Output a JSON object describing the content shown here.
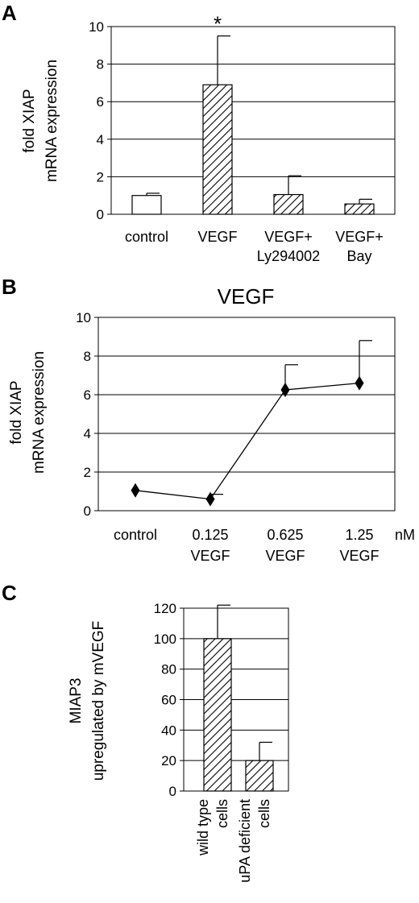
{
  "chart_data": [
    {
      "panel": "A",
      "type": "bar",
      "categories": [
        [
          "control"
        ],
        [
          "VEGF"
        ],
        [
          "VEGF+",
          "Ly294002"
        ],
        [
          "VEGF+",
          "Bay"
        ]
      ],
      "values": [
        1.0,
        6.9,
        1.05,
        0.55
      ],
      "errors": [
        0.12,
        2.6,
        1.0,
        0.25
      ],
      "fills": [
        "none",
        "hatch",
        "hatch",
        "hatch"
      ],
      "annotations": [
        "",
        "*",
        "",
        ""
      ],
      "ylabel_lines": [
        "fold XIAP",
        "mRNA expression"
      ],
      "ylim": [
        0,
        10
      ],
      "yticks": [
        "0",
        "2",
        "4",
        "6",
        "8",
        "10"
      ],
      "grid": true
    },
    {
      "panel": "B",
      "type": "line",
      "title": "VEGF",
      "categories": [
        [
          "control"
        ],
        [
          "0.125",
          "VEGF"
        ],
        [
          "0.625",
          "VEGF"
        ],
        [
          "1.25",
          "VEGF"
        ]
      ],
      "values": [
        1.05,
        0.6,
        6.25,
        6.6
      ],
      "errors": [
        0,
        0.25,
        1.3,
        2.2
      ],
      "unit_label": "nM",
      "marker": "diamond",
      "ylabel_lines": [
        "fold XIAP",
        "mRNA expression"
      ],
      "ylim": [
        0,
        10
      ],
      "yticks": [
        "0",
        "2",
        "4",
        "6",
        "8",
        "10"
      ],
      "grid": true
    },
    {
      "panel": "C",
      "type": "bar",
      "categories": [
        [
          "wild type",
          "cells"
        ],
        [
          "uPA deficient",
          "cells"
        ]
      ],
      "values": [
        100,
        20
      ],
      "errors": [
        22,
        12
      ],
      "fills": [
        "hatch",
        "hatch"
      ],
      "ylabel_lines": [
        "MIAP3",
        "upregulated by mVEGF"
      ],
      "ylim": [
        0,
        120
      ],
      "yticks": [
        "0",
        "20",
        "40",
        "60",
        "80",
        "100",
        "120"
      ],
      "grid": true
    }
  ],
  "colors": {
    "ink": "#000000",
    "bar_fill": "#ffffff"
  }
}
